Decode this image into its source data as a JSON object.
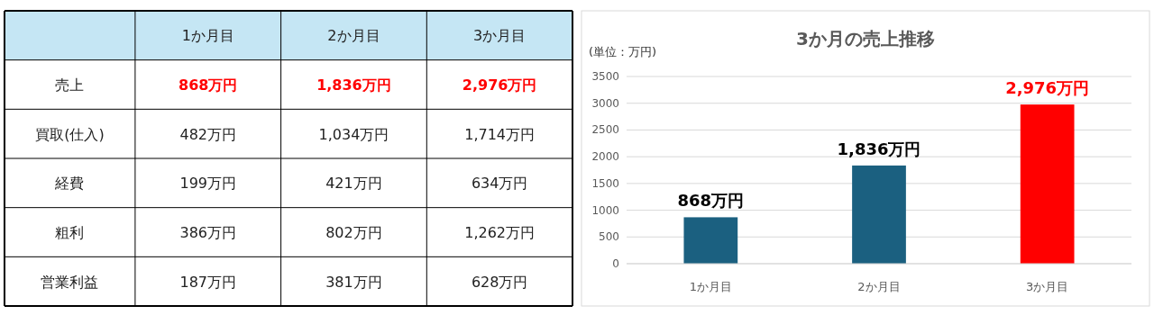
{
  "chart_data": [
    {
      "type": "heatmap",
      "categories": [
        "1か月目",
        "2か月目",
        "3か月目"
      ],
      "y_categories": [
        "売上",
        "買取(仕入)",
        "経費",
        "粗利",
        "営業利益"
      ],
      "cells": [
        [
          868,
          1836,
          2976
        ],
        [
          482,
          1034,
          1714
        ],
        [
          199,
          421,
          634
        ],
        [
          386,
          802,
          1262
        ],
        [
          187,
          381,
          628
        ]
      ],
      "cell_labels": [
        [
          "868万円",
          "1,836万円",
          "2,976万円"
        ],
        [
          "482万円",
          "1,034万円",
          "1,714万円"
        ],
        [
          "199万円",
          "421万円",
          "634万円"
        ],
        [
          "386万円",
          "802万円",
          "1,262万円"
        ],
        [
          "187万円",
          "381万円",
          "628万円"
        ]
      ]
    },
    {
      "type": "bar",
      "title": "3か月の売上推移",
      "ylabel": "(単位：万円)",
      "categories": [
        "1か月目",
        "2か月目",
        "3か月目"
      ],
      "values": [
        868,
        1836,
        2976
      ],
      "colors": [
        "#1b6080",
        "#1b6080",
        "#ff0000"
      ],
      "value_labels": [
        "868万円",
        "1,836万円",
        "2,976万円"
      ],
      "ylim": [
        0,
        3500
      ],
      "yticks": [
        0,
        500,
        1000,
        1500,
        2000,
        2500,
        3000,
        3500
      ],
      "grid": "y"
    }
  ]
}
